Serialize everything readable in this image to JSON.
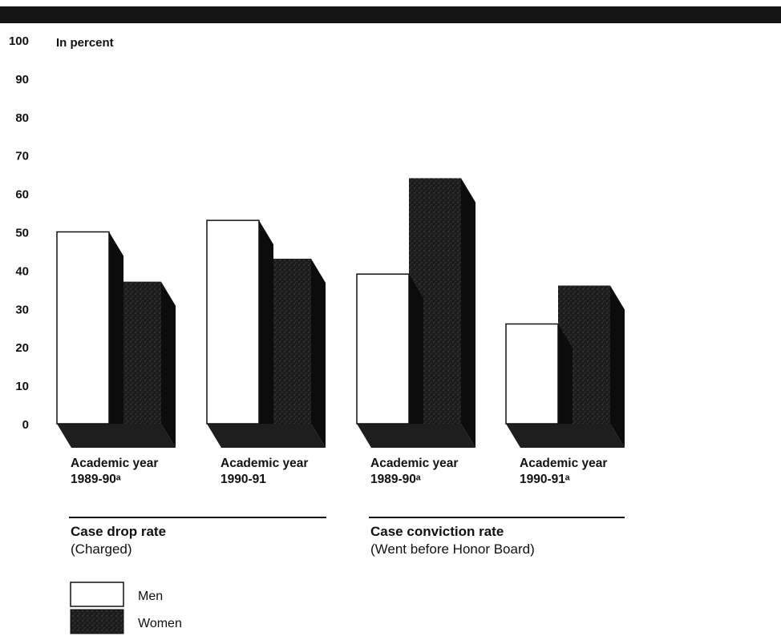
{
  "chart_data": {
    "type": "bar",
    "unit_label": "In percent",
    "y_ticks": [
      "0",
      "10",
      "20",
      "30",
      "40",
      "50",
      "60",
      "70",
      "80",
      "90",
      "100"
    ],
    "ylim": [
      0,
      100
    ],
    "categories": [
      {
        "line1": "Academic year",
        "line2": "1989-90ᵃ"
      },
      {
        "line1": "Academic year",
        "line2": "1990-91"
      },
      {
        "line1": "Academic year",
        "line2": "1989-90ᵃ"
      },
      {
        "line1": "Academic year",
        "line2": "1990-91ᵃ"
      }
    ],
    "series": [
      {
        "name": "Men",
        "values": [
          50,
          53,
          39,
          26
        ]
      },
      {
        "name": "Women",
        "values": [
          37,
          43,
          64,
          36
        ]
      }
    ],
    "groups": [
      {
        "title": "Case drop rate",
        "subtitle": "(Charged)"
      },
      {
        "title": "Case conviction rate",
        "subtitle": "(Went before Honor Board)"
      }
    ],
    "legend": [
      {
        "label": "Men"
      },
      {
        "label": "Women"
      }
    ],
    "colors": {
      "men": "#ffffff",
      "women": "#1c1c1c",
      "women_side": "#0c0c0c",
      "floor": "#1e1e1e",
      "outline": "#111111"
    }
  }
}
